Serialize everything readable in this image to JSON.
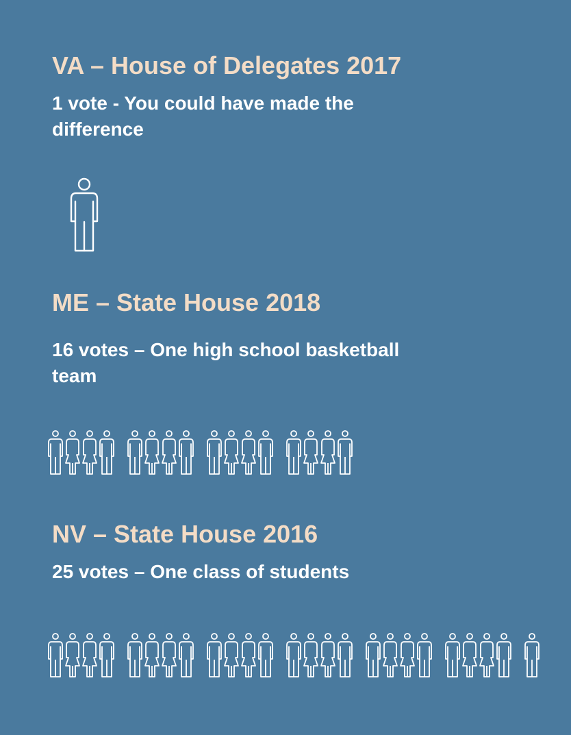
{
  "sections": [
    {
      "title": "VA – House of Delegates 2017",
      "subtitle": "1 vote - You could have made the difference",
      "votes": 1
    },
    {
      "title": "ME – State House 2018",
      "subtitle": "16 votes – One high school basketball team",
      "votes": 16
    },
    {
      "title": "NV – State House 2016",
      "subtitle": "25 votes – One class of students",
      "votes": 25
    }
  ],
  "colors": {
    "background": "#4a7a9e",
    "title": "#f3dcc6",
    "text": "#ffffff",
    "icon": "#ffffff"
  },
  "icons": {
    "person": "person-icon"
  }
}
